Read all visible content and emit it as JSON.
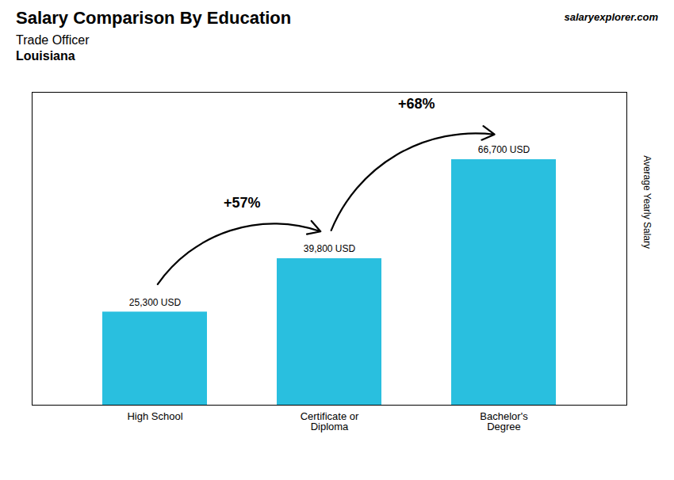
{
  "chart_data": {
    "type": "bar",
    "title": "Salary Comparison By Education",
    "subtitle": [
      "Trade Officer",
      "Louisiana"
    ],
    "categories": [
      "High School",
      "Certificate or\nDiploma",
      "Bachelor's\nDegree"
    ],
    "values": [
      25300,
      39800,
      66700
    ],
    "value_labels": [
      "25,300 USD",
      "39,800 USD",
      "66,700 USD"
    ],
    "data_labels": true,
    "color": "#29BFDF",
    "ylabel": "Average Yearly Salary",
    "ylim": [
      0,
      85000
    ],
    "yticks": [],
    "tick_labels": "x",
    "grid": false,
    "annotations": [
      {
        "text": "salaryexplorer.com"
      },
      {
        "text": "+57%",
        "from": "High School",
        "to": "Certificate or\nDiploma"
      },
      {
        "text": "+68%",
        "from": "Certificate or\nDiploma",
        "to": "Bachelor's\nDegree"
      }
    ]
  }
}
